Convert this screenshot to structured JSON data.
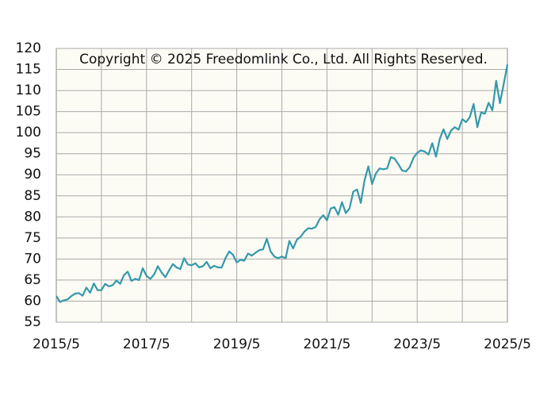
{
  "chart_data": {
    "type": "line",
    "annotation": "Copyright © 2025 Freedomlink Co., Ltd. All Rights Reserved.",
    "x": [
      "2015/5",
      "2015/6",
      "2015/7",
      "2015/8",
      "2015/9",
      "2015/10",
      "2015/11",
      "2015/12",
      "2016/1",
      "2016/2",
      "2016/3",
      "2016/4",
      "2016/5",
      "2016/6",
      "2016/7",
      "2016/8",
      "2016/9",
      "2016/10",
      "2016/11",
      "2016/12",
      "2017/1",
      "2017/2",
      "2017/3",
      "2017/4",
      "2017/5",
      "2017/6",
      "2017/7",
      "2017/8",
      "2017/9",
      "2017/10",
      "2017/11",
      "2017/12",
      "2018/1",
      "2018/2",
      "2018/3",
      "2018/4",
      "2018/5",
      "2018/6",
      "2018/7",
      "2018/8",
      "2018/9",
      "2018/10",
      "2018/11",
      "2018/12",
      "2019/1",
      "2019/2",
      "2019/3",
      "2019/4",
      "2019/5",
      "2019/6",
      "2019/7",
      "2019/8",
      "2019/9",
      "2019/10",
      "2019/11",
      "2019/12",
      "2020/1",
      "2020/2",
      "2020/3",
      "2020/4",
      "2020/5",
      "2020/6",
      "2020/7",
      "2020/8",
      "2020/9",
      "2020/10",
      "2020/11",
      "2020/12",
      "2021/1",
      "2021/2",
      "2021/3",
      "2021/4",
      "2021/5",
      "2021/6",
      "2021/7",
      "2021/8",
      "2021/9",
      "2021/10",
      "2021/11",
      "2021/12",
      "2022/1",
      "2022/2",
      "2022/3",
      "2022/4",
      "2022/5",
      "2022/6",
      "2022/7",
      "2022/8",
      "2022/9",
      "2022/10",
      "2022/11",
      "2022/12",
      "2023/1",
      "2023/2",
      "2023/3",
      "2023/4",
      "2023/5",
      "2023/6",
      "2023/7",
      "2023/8",
      "2023/9",
      "2023/10",
      "2023/11",
      "2023/12",
      "2024/1",
      "2024/2",
      "2024/3",
      "2024/4",
      "2024/5",
      "2024/6",
      "2024/7",
      "2024/8",
      "2024/9",
      "2024/10",
      "2024/11",
      "2024/12",
      "2025/1",
      "2025/2",
      "2025/3",
      "2025/4",
      "2025/5"
    ],
    "series": [
      {
        "color": "#3399ab",
        "values": [
          61.2,
          59.8,
          60.2,
          60.4,
          61.2,
          61.8,
          61.9,
          61.3,
          63.2,
          62.0,
          64.2,
          62.6,
          62.6,
          64.1,
          63.5,
          63.8,
          64.9,
          64.1,
          66.2,
          67.0,
          64.8,
          65.3,
          65.0,
          67.8,
          66.0,
          65.3,
          66.3,
          68.3,
          66.8,
          65.7,
          67.3,
          68.8,
          68.0,
          67.6,
          70.2,
          68.7,
          68.5,
          69.0,
          68.0,
          68.3,
          69.3,
          67.8,
          68.4,
          68.0,
          68.0,
          70.2,
          71.8,
          71.0,
          69.2,
          69.8,
          69.6,
          71.3,
          70.8,
          71.5,
          72.1,
          72.3,
          74.8,
          71.8,
          70.6,
          70.2,
          70.6,
          70.2,
          74.3,
          72.5,
          74.6,
          75.3,
          76.5,
          77.3,
          77.2,
          77.6,
          79.4,
          80.4,
          79.2,
          82.0,
          82.3,
          80.5,
          83.5,
          80.9,
          82.0,
          86.0,
          86.5,
          83.3,
          88.7,
          92.0,
          87.8,
          90.3,
          91.5,
          91.3,
          91.5,
          94.2,
          93.8,
          92.5,
          91.0,
          90.8,
          91.8,
          94.0,
          95.2,
          95.8,
          95.5,
          94.8,
          97.5,
          94.3,
          98.5,
          100.8,
          98.5,
          100.5,
          101.3,
          100.7,
          103.2,
          102.5,
          103.7,
          106.8,
          101.3,
          104.8,
          104.5,
          107.1,
          105.3,
          112.3,
          107.0,
          111.5,
          116.2
        ]
      }
    ],
    "xticks": [
      "2015/5",
      "2017/5",
      "2019/5",
      "2021/5",
      "2023/5",
      "2025/5"
    ],
    "ylim": [
      55,
      120
    ],
    "yticks": [
      55,
      60,
      65,
      70,
      75,
      80,
      85,
      90,
      95,
      100,
      105,
      110,
      115,
      120
    ],
    "grid": true
  }
}
